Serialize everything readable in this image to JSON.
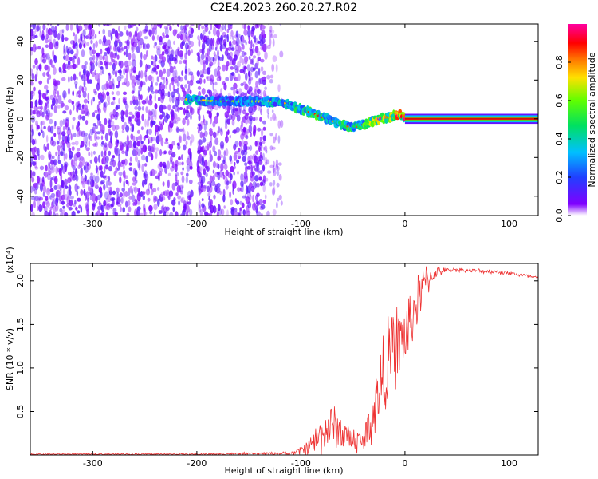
{
  "title": "C2E4.2023.260.20.27.R02",
  "colors": {
    "snr_line": "#ee3333",
    "ridge_core": "#cc1111"
  },
  "chart_data": [
    {
      "type": "heatmap",
      "xlabel": "Height of straight line (km)",
      "ylabel": "Frequency (Hz)",
      "xlim": [
        -360,
        128
      ],
      "ylim": [
        -50,
        49
      ],
      "xticks": [
        -300,
        -200,
        -100,
        0,
        100
      ],
      "yticks": [
        -40,
        -20,
        0,
        20,
        40
      ],
      "colorbar": {
        "label": "Normalized spectral amplitude",
        "range": [
          0.0,
          1.0
        ],
        "ticks": [
          "0.0",
          "0.2",
          "0.4",
          "0.6",
          "0.8"
        ],
        "colormap": "rainbow (purple-blue-cyan-green-yellow-red-magenta)"
      },
      "noise_region": {
        "x": [
          -360,
          -120
        ],
        "amplitude": "low (~0.0-0.1)"
      },
      "ridge": {
        "x": [
          -210,
          -195,
          -180,
          -150,
          -120,
          -100,
          -85,
          -70,
          -55,
          -45,
          -35,
          -25,
          -15,
          -5,
          0,
          128
        ],
        "y": [
          10,
          9.5,
          9,
          9,
          9,
          5,
          2,
          -1,
          -4,
          -4,
          -2,
          0,
          1,
          2,
          0,
          0
        ],
        "amplitude": [
          0.45,
          0.45,
          0.3,
          0.35,
          0.45,
          0.55,
          0.6,
          0.5,
          0.55,
          0.55,
          0.7,
          0.8,
          0.85,
          0.9,
          1.0,
          1.0
        ]
      }
    },
    {
      "type": "line",
      "xlabel": "Height of straight line (km)",
      "ylabel": "SNR (10 * v/v)",
      "y_multiplier": "(x10⁴)",
      "xlim": [
        -360,
        128
      ],
      "ylim": [
        0,
        2.2
      ],
      "xticks": [
        -300,
        -200,
        -100,
        0,
        100
      ],
      "yticks": [
        0.5,
        1.0,
        1.5,
        2.0
      ],
      "series": [
        {
          "x": [
            -360,
            -200,
            -110,
            -100,
            -90,
            -80,
            -70,
            -60,
            -50,
            -40,
            -30,
            -20,
            -10,
            0,
            10,
            20,
            30,
            40,
            50,
            60,
            80,
            100,
            110,
            128
          ],
          "y": [
            0.01,
            0.01,
            0.02,
            0.05,
            0.12,
            0.25,
            0.35,
            0.25,
            0.18,
            0.15,
            0.5,
            0.95,
            1.25,
            1.35,
            1.7,
            2.0,
            2.1,
            2.12,
            2.13,
            2.12,
            2.11,
            2.09,
            2.07,
            2.03
          ],
          "jitter": [
            0.005,
            0.006,
            0.01,
            0.03,
            0.08,
            0.14,
            0.15,
            0.12,
            0.1,
            0.08,
            0.22,
            0.3,
            0.28,
            0.25,
            0.2,
            0.12,
            0.04,
            0.015,
            0.015,
            0.015,
            0.015,
            0.015,
            0.015,
            0.015
          ]
        }
      ]
    }
  ]
}
